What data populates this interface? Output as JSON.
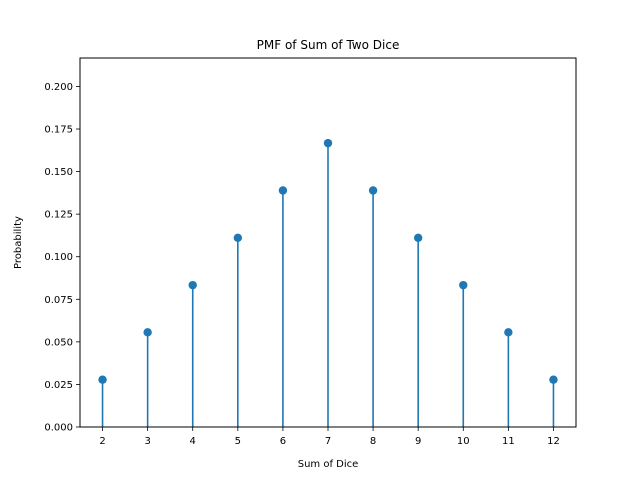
{
  "chart_data": {
    "type": "stem",
    "title": "PMF of Sum of Two Dice",
    "xlabel": "Sum of Dice",
    "ylabel": "Probability",
    "x": [
      2,
      3,
      4,
      5,
      6,
      7,
      8,
      9,
      10,
      11,
      12
    ],
    "y": [
      0.0278,
      0.0556,
      0.0833,
      0.1111,
      0.1389,
      0.1667,
      0.1389,
      0.1111,
      0.0833,
      0.0556,
      0.0278
    ],
    "xticks": [
      "2",
      "3",
      "4",
      "5",
      "6",
      "7",
      "8",
      "9",
      "10",
      "11",
      "12"
    ],
    "yticks": [
      0.0,
      0.025,
      0.05,
      0.075,
      0.1,
      0.125,
      0.15,
      0.175,
      0.2
    ],
    "ytick_labels": [
      "0.000",
      "0.025",
      "0.050",
      "0.075",
      "0.100",
      "0.125",
      "0.150",
      "0.175",
      "0.200"
    ],
    "xlim": [
      1.5,
      12.5
    ],
    "ylim": [
      0,
      0.2167
    ],
    "grid": false,
    "color": "#1f77b4"
  }
}
